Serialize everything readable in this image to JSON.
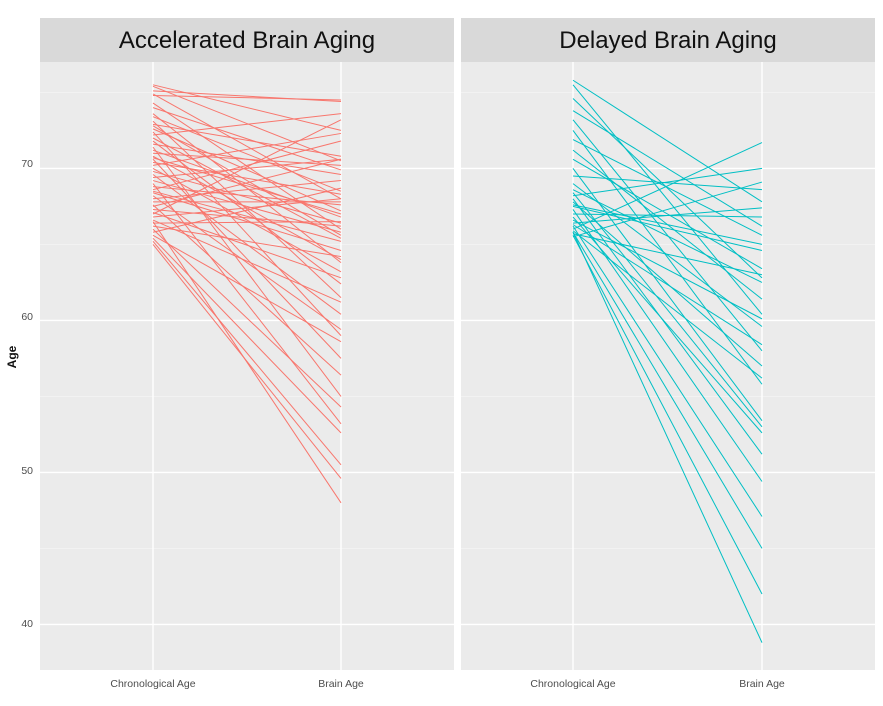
{
  "chart_data": {
    "type": "line",
    "ylabel": "Age",
    "ylim": [
      37,
      77
    ],
    "yticks": [
      40,
      50,
      60,
      70
    ],
    "categories": [
      "Chronological Age",
      "Brain Age"
    ],
    "grid": true,
    "panels": [
      {
        "title": "Accelerated Brain Aging",
        "color": "#F8766D",
        "series": [
          {
            "values": [
              75.5,
              72.5
            ]
          },
          {
            "values": [
              75.4,
              70.5
            ]
          },
          {
            "values": [
              75.1,
              74.4
            ]
          },
          {
            "values": [
              74.9,
              68.0
            ]
          },
          {
            "values": [
              74.8,
              74.5
            ]
          },
          {
            "values": [
              74.3,
              66.0
            ]
          },
          {
            "values": [
              73.6,
              63.8
            ]
          },
          {
            "values": [
              73.4,
              68.5
            ]
          },
          {
            "values": [
              73.1,
              61.5
            ]
          },
          {
            "values": [
              72.9,
              70.8
            ]
          },
          {
            "values": [
              72.6,
              67.2
            ]
          },
          {
            "values": [
              72.4,
              59.0
            ]
          },
          {
            "values": [
              72.2,
              73.6
            ]
          },
          {
            "values": [
              72.0,
              65.4
            ]
          },
          {
            "values": [
              71.8,
              62.4
            ]
          },
          {
            "values": [
              71.6,
              69.6
            ]
          },
          {
            "values": [
              71.4,
              55.0
            ]
          },
          {
            "values": [
              71.2,
              66.8
            ]
          },
          {
            "values": [
              71.0,
              70.2
            ]
          },
          {
            "values": [
              70.8,
              64.0
            ]
          },
          {
            "values": [
              70.6,
              57.5
            ]
          },
          {
            "values": [
              70.4,
              68.3
            ]
          },
          {
            "values": [
              70.2,
              72.3
            ]
          },
          {
            "values": [
              70.0,
              63.2
            ]
          },
          {
            "values": [
              69.8,
              66.4
            ]
          },
          {
            "values": [
              69.6,
              60.4
            ]
          },
          {
            "values": [
              69.4,
              70.6
            ]
          },
          {
            "values": [
              69.2,
              65.8
            ]
          },
          {
            "values": [
              69.0,
              53.2
            ]
          },
          {
            "values": [
              68.8,
              67.6
            ]
          },
          {
            "values": [
              68.6,
              71.8
            ]
          },
          {
            "values": [
              68.4,
              64.6
            ]
          },
          {
            "values": [
              68.2,
              59.4
            ]
          },
          {
            "values": [
              68.0,
              69.2
            ]
          },
          {
            "values": [
              67.8,
              67.8
            ]
          },
          {
            "values": [
              67.6,
              56.4
            ]
          },
          {
            "values": [
              67.5,
              70.6
            ]
          },
          {
            "values": [
              67.3,
              66.2
            ]
          },
          {
            "values": [
              67.1,
              62.8
            ]
          },
          {
            "values": [
              67.0,
              73.2
            ]
          },
          {
            "values": [
              66.8,
              68.0
            ]
          },
          {
            "values": [
              66.6,
              61.2
            ]
          },
          {
            "values": [
              66.4,
              66.5
            ]
          },
          {
            "values": [
              66.2,
              64.2
            ]
          },
          {
            "values": [
              66.0,
              54.3
            ]
          },
          {
            "values": [
              65.8,
              68.7
            ]
          },
          {
            "values": [
              65.6,
              58.6
            ]
          },
          {
            "values": [
              65.4,
              52.6
            ]
          },
          {
            "values": [
              65.2,
              50.5
            ]
          },
          {
            "values": [
              65.0,
              49.6
            ]
          },
          {
            "values": [
              66.5,
              48.0
            ]
          },
          {
            "values": [
              68.5,
              65.2
            ]
          },
          {
            "values": [
              70.7,
              67.0
            ]
          },
          {
            "values": [
              72.8,
              65.6
            ]
          },
          {
            "values": [
              74.0,
              69.9
            ]
          }
        ]
      },
      {
        "title": "Delayed Brain Aging",
        "color": "#00BFC4",
        "series": [
          {
            "values": [
              75.8,
              67.8
            ]
          },
          {
            "values": [
              75.5,
              60.4
            ]
          },
          {
            "values": [
              74.6,
              62.8
            ]
          },
          {
            "values": [
              73.8,
              66.2
            ]
          },
          {
            "values": [
              73.2,
              58.0
            ]
          },
          {
            "values": [
              72.5,
              55.8
            ]
          },
          {
            "values": [
              71.9,
              65.6
            ]
          },
          {
            "values": [
              71.2,
              61.4
            ]
          },
          {
            "values": [
              70.6,
              63.4
            ]
          },
          {
            "values": [
              70.0,
              53.4
            ]
          },
          {
            "values": [
              69.5,
              68.6
            ]
          },
          {
            "values": [
              69.0,
              59.6
            ]
          },
          {
            "values": [
              68.6,
              62.5
            ]
          },
          {
            "values": [
              68.2,
              70.0
            ]
          },
          {
            "values": [
              68.0,
              51.2
            ]
          },
          {
            "values": [
              67.8,
              57.0
            ]
          },
          {
            "values": [
              67.5,
              64.6
            ]
          },
          {
            "values": [
              67.3,
              49.4
            ]
          },
          {
            "values": [
              67.0,
              66.8
            ]
          },
          {
            "values": [
              66.8,
              52.6
            ]
          },
          {
            "values": [
              66.6,
              60.1
            ]
          },
          {
            "values": [
              66.4,
              67.4
            ]
          },
          {
            "values": [
              66.2,
              47.1
            ]
          },
          {
            "values": [
              66.0,
              71.7
            ]
          },
          {
            "values": [
              65.9,
              56.2
            ]
          },
          {
            "values": [
              65.8,
              45.0
            ]
          },
          {
            "values": [
              65.7,
              63.0
            ]
          },
          {
            "values": [
              65.6,
              42.0
            ]
          },
          {
            "values": [
              65.5,
              69.1
            ]
          },
          {
            "values": [
              65.8,
              38.8
            ]
          },
          {
            "values": [
              66.3,
              58.4
            ]
          },
          {
            "values": [
              67.6,
              65.0
            ]
          },
          {
            "values": [
              68.4,
              53.0
            ]
          }
        ]
      }
    ]
  }
}
